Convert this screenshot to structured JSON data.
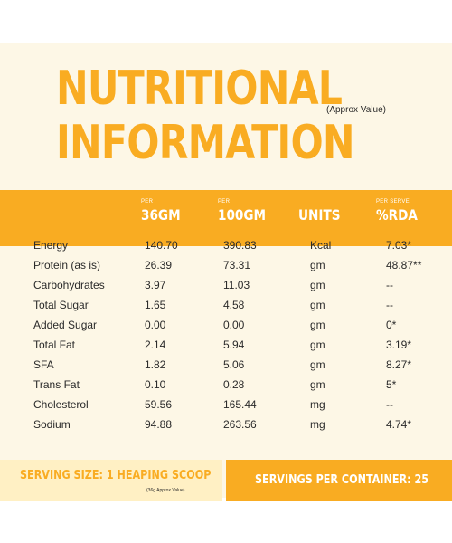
{
  "title": {
    "line1": "NUTRITIONAL",
    "line2": "INFORMATION",
    "note": "(Approx Value)"
  },
  "columns": [
    {
      "per": "PER",
      "label": "36GM"
    },
    {
      "per": "PER",
      "label": "100GM"
    },
    {
      "per": "",
      "label": "UNITS"
    },
    {
      "per": "PER SERVE",
      "label": "%RDA"
    }
  ],
  "rows": [
    {
      "name": "Energy",
      "per36": "140.70",
      "per100": "390.83",
      "unit": "Kcal",
      "rda": "7.03*"
    },
    {
      "name": "Protein (as is)",
      "per36": "26.39",
      "per100": "73.31",
      "unit": "gm",
      "rda": "48.87**"
    },
    {
      "name": "Carbohydrates",
      "per36": "3.97",
      "per100": "11.03",
      "unit": "gm",
      "rda": "--"
    },
    {
      "name": "Total Sugar",
      "per36": "1.65",
      "per100": "4.58",
      "unit": "gm",
      "rda": "--"
    },
    {
      "name": "Added Sugar",
      "per36": "0.00",
      "per100": "0.00",
      "unit": "gm",
      "rda": "0*"
    },
    {
      "name": "Total Fat",
      "per36": "2.14",
      "per100": "5.94",
      "unit": "gm",
      "rda": "3.19*"
    },
    {
      "name": "SFA",
      "per36": "1.82",
      "per100": "5.06",
      "unit": "gm",
      "rda": "8.27*"
    },
    {
      "name": "Trans Fat",
      "per36": "0.10",
      "per100": "0.28",
      "unit": "gm",
      "rda": "5*"
    },
    {
      "name": "Cholesterol",
      "per36": "59.56",
      "per100": "165.44",
      "unit": "mg",
      "rda": "--"
    },
    {
      "name": "Sodium",
      "per36": "94.88",
      "per100": "263.56",
      "unit": "mg",
      "rda": "4.74*"
    }
  ],
  "footer": {
    "serving_size": "SERVING SIZE: 1 HEAPING SCOOP",
    "serving_note": "(36g Approx Value)",
    "servings_per_container": "SERVINGS PER CONTAINER: 25"
  },
  "colors": {
    "accent": "#f9ac22",
    "background": "#fdf7e6",
    "footer_light": "#fff0c4"
  }
}
